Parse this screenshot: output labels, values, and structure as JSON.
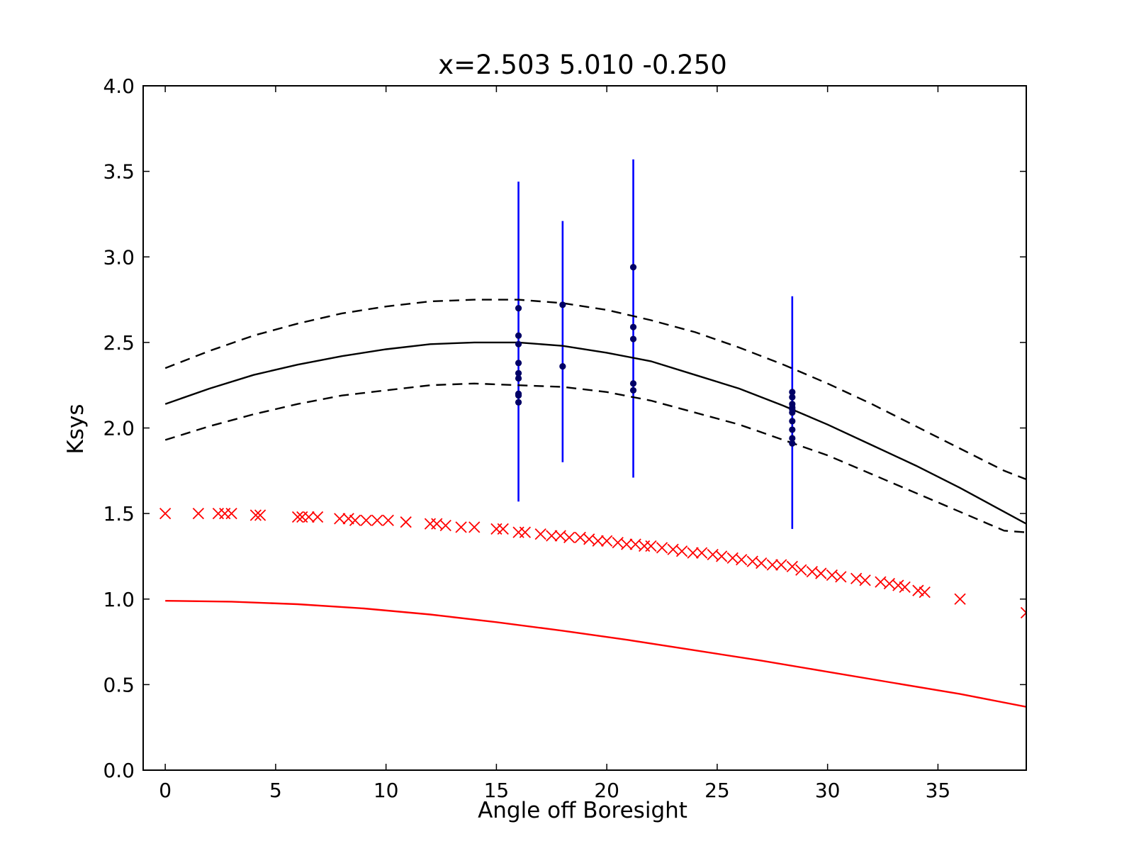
{
  "chart_data": {
    "type": "scatter",
    "title": "x=2.503 5.010 -0.250",
    "xlabel": "Angle off Boresight",
    "ylabel": "Ksys",
    "xlim": [
      -1,
      39
    ],
    "ylim": [
      0.0,
      4.0
    ],
    "xticks": [
      0,
      5,
      10,
      15,
      20,
      25,
      30,
      35
    ],
    "xtick_labels": [
      "0",
      "5",
      "10",
      "15",
      "20",
      "25",
      "30",
      "35"
    ],
    "yticks": [
      0.0,
      0.5,
      1.0,
      1.5,
      2.0,
      2.5,
      3.0,
      3.5,
      4.0
    ],
    "ytick_labels": [
      "0.0",
      "0.5",
      "1.0",
      "1.5",
      "2.0",
      "2.5",
      "3.0",
      "3.5",
      "4.0"
    ],
    "grid": false,
    "colors": {
      "fit": "#000000",
      "bounds": "#000000",
      "measurements": "#000066",
      "errorbars": "#0000ff",
      "model_points": "#ff0000",
      "model_curve": "#ff0000"
    },
    "series": [
      {
        "style": "solid-line",
        "color": "#000000",
        "x": [
          0,
          2,
          4,
          6,
          8,
          10,
          12,
          14,
          16,
          18,
          20,
          22,
          24,
          26,
          28,
          30,
          32,
          34,
          36,
          38,
          39
        ],
        "y": [
          2.14,
          2.23,
          2.31,
          2.37,
          2.42,
          2.46,
          2.49,
          2.5,
          2.5,
          2.48,
          2.44,
          2.39,
          2.31,
          2.23,
          2.13,
          2.02,
          1.9,
          1.78,
          1.65,
          1.51,
          1.44
        ]
      },
      {
        "style": "dashed-line",
        "color": "#000000",
        "x": [
          0,
          2,
          4,
          6,
          8,
          10,
          12,
          14,
          16,
          18,
          20,
          22,
          24,
          26,
          28,
          30,
          32,
          34,
          36,
          38,
          39
        ],
        "y": [
          2.35,
          2.45,
          2.54,
          2.61,
          2.67,
          2.71,
          2.74,
          2.75,
          2.75,
          2.73,
          2.69,
          2.63,
          2.56,
          2.47,
          2.37,
          2.26,
          2.14,
          2.01,
          1.88,
          1.75,
          1.7
        ]
      },
      {
        "style": "dashed-line",
        "color": "#000000",
        "x": [
          0,
          2,
          4,
          6,
          8,
          10,
          12,
          14,
          16,
          18,
          20,
          22,
          24,
          26,
          28,
          30,
          32,
          34,
          36,
          38,
          39
        ],
        "y": [
          1.93,
          2.01,
          2.08,
          2.14,
          2.19,
          2.22,
          2.25,
          2.26,
          2.25,
          2.24,
          2.21,
          2.16,
          2.09,
          2.02,
          1.93,
          1.84,
          1.73,
          1.62,
          1.51,
          1.4,
          1.39
        ]
      },
      {
        "style": "solid-line",
        "color": "#ff0000",
        "x": [
          0,
          3,
          6,
          9,
          12,
          15,
          18,
          21,
          24,
          27,
          30,
          33,
          36,
          39
        ],
        "y": [
          0.99,
          0.985,
          0.97,
          0.945,
          0.91,
          0.865,
          0.815,
          0.76,
          0.7,
          0.64,
          0.575,
          0.51,
          0.445,
          0.37
        ]
      },
      {
        "style": "x-markers",
        "color": "#ff0000",
        "x": [
          0,
          1.5,
          2.4,
          2.7,
          3.0,
          4.1,
          4.3,
          6.0,
          6.2,
          6.5,
          6.9,
          7.9,
          8.3,
          8.6,
          9.1,
          9.6,
          10.1,
          10.9,
          12.0,
          12.3,
          12.7,
          13.4,
          14.0,
          15.0,
          15.3,
          16.0,
          16.3,
          17.0,
          17.5,
          17.9,
          18.3,
          18.8,
          19.2,
          19.6,
          20.0,
          20.5,
          20.9,
          21.3,
          21.7,
          22.0,
          22.5,
          23.0,
          23.4,
          23.9,
          24.3,
          24.8,
          25.2,
          25.7,
          26.1,
          26.6,
          27.0,
          27.5,
          27.9,
          28.4,
          28.8,
          29.3,
          29.7,
          30.2,
          30.6,
          31.3,
          31.7,
          32.4,
          32.8,
          33.2,
          33.5,
          34.1,
          34.4,
          36.0,
          39.0
        ],
        "y": [
          1.5,
          1.5,
          1.5,
          1.5,
          1.5,
          1.49,
          1.49,
          1.48,
          1.48,
          1.48,
          1.48,
          1.47,
          1.47,
          1.46,
          1.46,
          1.46,
          1.46,
          1.45,
          1.44,
          1.44,
          1.43,
          1.42,
          1.42,
          1.41,
          1.41,
          1.39,
          1.39,
          1.38,
          1.37,
          1.37,
          1.36,
          1.36,
          1.35,
          1.34,
          1.34,
          1.33,
          1.32,
          1.32,
          1.31,
          1.31,
          1.3,
          1.29,
          1.28,
          1.27,
          1.27,
          1.26,
          1.25,
          1.24,
          1.23,
          1.22,
          1.21,
          1.2,
          1.2,
          1.19,
          1.17,
          1.16,
          1.15,
          1.14,
          1.13,
          1.12,
          1.11,
          1.1,
          1.09,
          1.08,
          1.07,
          1.05,
          1.04,
          1.0,
          0.92
        ]
      },
      {
        "style": "dots",
        "color": "#000066",
        "x": [
          16,
          16,
          16,
          16,
          16,
          16,
          16,
          16,
          16,
          18,
          18,
          21.2,
          21.2,
          21.2,
          21.2,
          21.2,
          28.4,
          28.4,
          28.4,
          28.4,
          28.4,
          28.4,
          28.4,
          28.4,
          28.4,
          28.4
        ],
        "y": [
          2.7,
          2.54,
          2.49,
          2.38,
          2.32,
          2.29,
          2.2,
          2.15,
          2.19,
          2.72,
          2.36,
          2.94,
          2.59,
          2.52,
          2.26,
          2.22,
          2.21,
          2.18,
          2.14,
          2.12,
          2.09,
          2.04,
          1.99,
          1.94,
          1.91,
          2.11
        ]
      }
    ],
    "errorbars": [
      {
        "x": 16,
        "ymin": 1.57,
        "ymax": 3.44
      },
      {
        "x": 18,
        "ymin": 1.8,
        "ymax": 3.21
      },
      {
        "x": 21.2,
        "ymin": 1.71,
        "ymax": 3.57
      },
      {
        "x": 28.4,
        "ymin": 1.41,
        "ymax": 2.77
      }
    ]
  }
}
